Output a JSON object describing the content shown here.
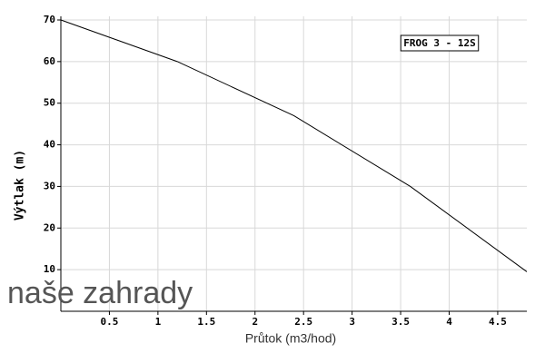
{
  "chart_data": {
    "type": "line",
    "watermark": "naše zahrady",
    "xlabel": "Průtok (m3/hod)",
    "ylabel": "Výtlak (m)",
    "x": [
      0,
      1.2,
      2.4,
      3.6,
      4.8
    ],
    "series": [
      {
        "name": "FROG 3 - 12S",
        "color": "#000000",
        "values": [
          70,
          60,
          47,
          30,
          9.5
        ]
      }
    ],
    "xlim": [
      0,
      4.8
    ],
    "xticks": [
      0.5,
      1,
      1.5,
      2,
      2.5,
      3,
      3.5,
      4,
      4.5
    ],
    "ylim": [
      0,
      70
    ],
    "yticks": [
      10,
      20,
      30,
      40,
      50,
      60,
      70
    ],
    "grid": true,
    "legend": "top-right"
  }
}
